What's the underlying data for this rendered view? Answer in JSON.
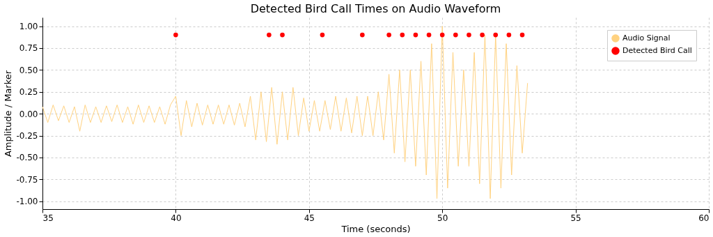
{
  "chart_data": {
    "type": "line",
    "title": "Detected Bird Call Times on Audio Waveform",
    "xlabel": "Time (seconds)",
    "ylabel": "Amplitude / Marker",
    "xlim": [
      35,
      60
    ],
    "xticks": [
      35,
      40,
      45,
      50,
      55,
      60
    ],
    "ylim": [
      -1.09,
      1.1
    ],
    "yticks": [
      {
        "value": -1,
        "label": "-1.00"
      },
      -0.75,
      {
        "value": -0.5,
        "label": "-0.50"
      },
      -0.25,
      {
        "value": 0,
        "label": "0.00"
      },
      0.25,
      {
        "value": 0.5,
        "label": "0.50"
      },
      0.75,
      {
        "value": 1,
        "label": "1.00"
      }
    ],
    "grid": true,
    "legend": "top right",
    "series": [
      {
        "name": "Audio Signal",
        "color": "#ffd280",
        "x": [
          35.0,
          35.2,
          35.4,
          35.6,
          35.8,
          36.0,
          36.2,
          36.4,
          36.6,
          36.8,
          37.0,
          37.2,
          37.4,
          37.6,
          37.8,
          38.0,
          38.2,
          38.4,
          38.6,
          38.8,
          39.0,
          39.2,
          39.4,
          39.6,
          39.8,
          40.0,
          40.2,
          40.4,
          40.6,
          40.8,
          41.0,
          41.2,
          41.4,
          41.6,
          41.8,
          42.0,
          42.2,
          42.4,
          42.6,
          42.8,
          43.0,
          43.2,
          43.4,
          43.6,
          43.8,
          44.0,
          44.2,
          44.4,
          44.6,
          44.8,
          45.0,
          45.2,
          45.4,
          45.6,
          45.8,
          46.0,
          46.2,
          46.4,
          46.6,
          46.8,
          47.0,
          47.2,
          47.4,
          47.6,
          47.8,
          48.0,
          48.2,
          48.4,
          48.6,
          48.8,
          49.0,
          49.2,
          49.4,
          49.6,
          49.8,
          50.0,
          50.2,
          50.4,
          50.6,
          50.8,
          51.0,
          51.2,
          51.4,
          51.6,
          51.8,
          52.0,
          52.2,
          52.4,
          52.6,
          52.8,
          53.0,
          53.2
        ],
        "values": [
          0.08,
          -0.1,
          0.1,
          -0.08,
          0.09,
          -0.1,
          0.08,
          -0.2,
          0.1,
          -0.1,
          0.08,
          -0.1,
          0.09,
          -0.09,
          0.1,
          -0.1,
          0.08,
          -0.12,
          0.1,
          -0.1,
          0.09,
          -0.1,
          0.08,
          -0.12,
          0.1,
          0.2,
          -0.25,
          0.15,
          -0.15,
          0.12,
          -0.13,
          0.1,
          -0.12,
          0.1,
          -0.12,
          0.1,
          -0.13,
          0.12,
          -0.15,
          0.2,
          -0.3,
          0.25,
          -0.32,
          0.3,
          -0.35,
          0.25,
          -0.3,
          0.3,
          -0.25,
          0.18,
          -0.2,
          0.15,
          -0.2,
          0.15,
          -0.18,
          0.2,
          -0.2,
          0.18,
          -0.22,
          0.2,
          -0.25,
          0.2,
          -0.25,
          0.25,
          -0.3,
          0.45,
          -0.45,
          0.5,
          -0.55,
          0.5,
          -0.6,
          0.6,
          -0.7,
          0.8,
          -0.97,
          1.0,
          -0.85,
          0.7,
          -0.6,
          0.5,
          -0.6,
          0.7,
          -0.8,
          0.9,
          -0.97,
          0.9,
          -0.85,
          0.8,
          -0.7,
          0.55,
          -0.45,
          0.35
        ]
      },
      {
        "name": "Detected Bird Call",
        "type": "scatter",
        "marker": "circle",
        "color": "#ff0000",
        "x": [
          40,
          43.5,
          44,
          45.5,
          47,
          48,
          48.5,
          49,
          49.5,
          50,
          50.5,
          51,
          51.5,
          52,
          52.5,
          53
        ],
        "values": [
          0.9,
          0.9,
          0.9,
          0.9,
          0.9,
          0.9,
          0.9,
          0.9,
          0.9,
          0.9,
          0.9,
          0.9,
          0.9,
          0.9,
          0.9,
          0.9
        ]
      }
    ]
  }
}
